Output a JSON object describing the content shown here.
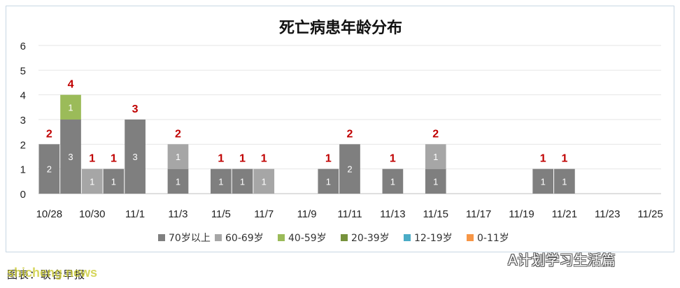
{
  "chart_data": {
    "type": "bar",
    "stacked": true,
    "title": "死亡病患年龄分布",
    "categories": [
      "10/28",
      "10/29",
      "10/30",
      "10/31",
      "11/1",
      "11/2",
      "11/3",
      "11/4",
      "11/5",
      "11/6",
      "11/7",
      "11/8",
      "11/9",
      "11/10",
      "11/11",
      "11/12",
      "11/13",
      "11/14",
      "11/15",
      "11/16",
      "11/17",
      "11/18",
      "11/19",
      "11/20",
      "11/21",
      "11/22",
      "11/23",
      "11/24",
      "11/25"
    ],
    "x_tick_labels": [
      "10/28",
      "10/30",
      "11/1",
      "11/3",
      "11/5",
      "11/7",
      "11/9",
      "11/11",
      "11/13",
      "11/15",
      "11/17",
      "11/19",
      "11/21",
      "11/23",
      "11/25"
    ],
    "ylim": [
      0,
      6
    ],
    "y_ticks": [
      0,
      1,
      2,
      3,
      4,
      5,
      6
    ],
    "grid": true,
    "legend_position": "bottom",
    "series": [
      {
        "name": "70岁以上",
        "color": "#7f7f7f",
        "values": [
          2,
          3,
          0,
          1,
          3,
          0,
          1,
          0,
          1,
          1,
          0,
          0,
          0,
          1,
          2,
          0,
          1,
          0,
          1,
          0,
          0,
          0,
          0,
          1,
          1,
          0,
          0,
          0,
          0
        ]
      },
      {
        "name": "60-69岁",
        "color": "#a6a6a6",
        "values": [
          0,
          0,
          1,
          0,
          0,
          0,
          1,
          0,
          0,
          0,
          1,
          0,
          0,
          0,
          0,
          0,
          0,
          0,
          1,
          0,
          0,
          0,
          0,
          0,
          0,
          0,
          0,
          0,
          0
        ]
      },
      {
        "name": "40-59岁",
        "color": "#9bbb59",
        "values": [
          0,
          1,
          0,
          0,
          0,
          0,
          0,
          0,
          0,
          0,
          0,
          0,
          0,
          0,
          0,
          0,
          0,
          0,
          0,
          0,
          0,
          0,
          0,
          0,
          0,
          0,
          0,
          0,
          0
        ]
      },
      {
        "name": "20-39岁",
        "color": "#76923c",
        "values": [
          0,
          0,
          0,
          0,
          0,
          0,
          0,
          0,
          0,
          0,
          0,
          0,
          0,
          0,
          0,
          0,
          0,
          0,
          0,
          0,
          0,
          0,
          0,
          0,
          0,
          0,
          0,
          0,
          0
        ]
      },
      {
        "name": "12-19岁",
        "color": "#4bacc6",
        "values": [
          0,
          0,
          0,
          0,
          0,
          0,
          0,
          0,
          0,
          0,
          0,
          0,
          0,
          0,
          0,
          0,
          0,
          0,
          0,
          0,
          0,
          0,
          0,
          0,
          0,
          0,
          0,
          0,
          0
        ]
      },
      {
        "name": "0-11岁",
        "color": "#f79646",
        "values": [
          0,
          0,
          0,
          0,
          0,
          0,
          0,
          0,
          0,
          0,
          0,
          0,
          0,
          0,
          0,
          0,
          0,
          0,
          0,
          0,
          0,
          0,
          0,
          0,
          0,
          0,
          0,
          0,
          0
        ]
      }
    ],
    "totals": [
      2,
      4,
      1,
      1,
      3,
      0,
      2,
      0,
      1,
      1,
      1,
      0,
      0,
      1,
      2,
      0,
      1,
      0,
      2,
      0,
      0,
      0,
      0,
      1,
      1,
      0,
      0,
      0,
      0
    ],
    "total_label_color": "#c00000",
    "segment_label_color": "#ffffff"
  },
  "footer": {
    "caption": "图表：联合早报",
    "watermark_left": "shicheng.news",
    "watermark_right": "A计划学习生活篇"
  }
}
